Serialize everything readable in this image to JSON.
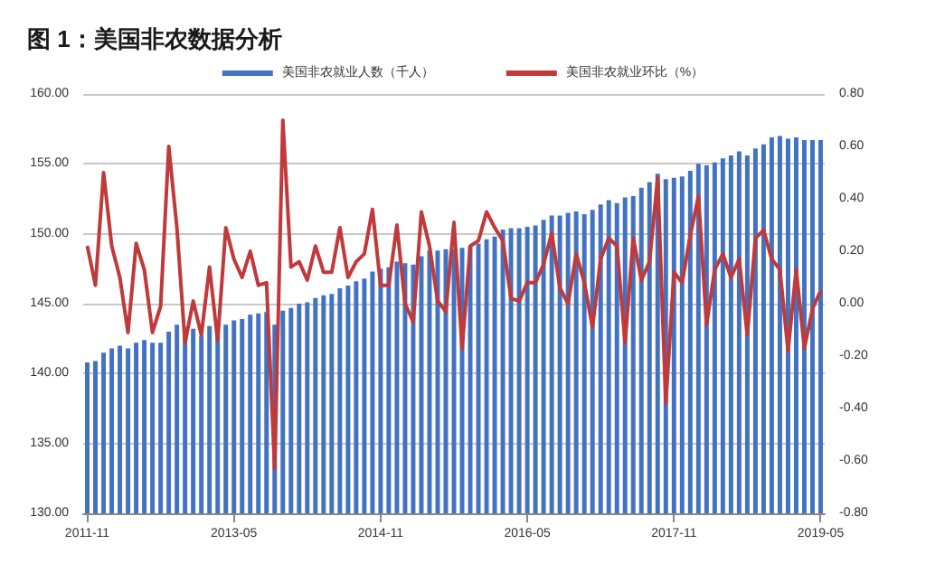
{
  "chart_data": {
    "type": "bar",
    "title": "图 1：美国非农数据分析",
    "categories": [
      "2011-11",
      null,
      null,
      null,
      null,
      null,
      null,
      null,
      null,
      null,
      null,
      null,
      null,
      null,
      null,
      null,
      null,
      null,
      "2013-05",
      null,
      null,
      null,
      null,
      null,
      null,
      null,
      null,
      null,
      null,
      null,
      null,
      null,
      null,
      null,
      null,
      null,
      "2014-11",
      null,
      null,
      null,
      null,
      null,
      null,
      null,
      null,
      null,
      null,
      null,
      null,
      null,
      null,
      null,
      null,
      null,
      "2016-05",
      null,
      null,
      null,
      null,
      null,
      null,
      null,
      null,
      null,
      null,
      null,
      null,
      null,
      null,
      null,
      null,
      null,
      "2017-11",
      null,
      null,
      null,
      null,
      null,
      null,
      null,
      null,
      null,
      null,
      null,
      null,
      null,
      null,
      null,
      null,
      null,
      "2019-05"
    ],
    "series": [
      {
        "name": "美国非农就业人数（千人）",
        "color": "#4272c2",
        "values": [
          140.8,
          140.9,
          141.5,
          141.8,
          142.0,
          141.8,
          142.2,
          142.4,
          142.2,
          142.2,
          143.0,
          143.5,
          143.3,
          143.2,
          142.7,
          143.4,
          142.8,
          143.5,
          143.8,
          143.9,
          144.2,
          144.3,
          144.4,
          143.5,
          144.5,
          144.7,
          145.0,
          145.1,
          145.4,
          145.6,
          145.7,
          146.1,
          146.3,
          146.6,
          146.8,
          147.3,
          147.5,
          147.6,
          148.0,
          147.9,
          147.8,
          148.4,
          148.8,
          148.8,
          148.9,
          148.9,
          149.0,
          149.1,
          149.3,
          149.6,
          149.8,
          150.3,
          150.4,
          150.4,
          150.5,
          150.6,
          151.0,
          151.3,
          151.3,
          151.5,
          151.6,
          151.4,
          151.7,
          152.1,
          152.4,
          152.2,
          152.6,
          152.7,
          153.3,
          153.7,
          154.3,
          153.9,
          154.0,
          154.1,
          154.5,
          155.0,
          154.9,
          155.1,
          155.4,
          155.6,
          155.9,
          155.6,
          156.1,
          156.4,
          156.9,
          157.0,
          156.8,
          156.9,
          156.7,
          156.7,
          156.7
        ]
      },
      {
        "name": "美国非农就业环比（%）",
        "type": "line",
        "axis": "y2",
        "color": "#c0393b",
        "values": [
          0.22,
          0.07,
          0.5,
          0.22,
          0.1,
          -0.11,
          0.23,
          0.13,
          -0.11,
          -0.01,
          0.6,
          0.29,
          -0.15,
          0.01,
          -0.12,
          0.14,
          -0.14,
          0.29,
          0.17,
          0.1,
          0.2,
          0.07,
          0.08,
          -0.63,
          0.7,
          0.14,
          0.16,
          0.09,
          0.22,
          0.12,
          0.12,
          0.29,
          0.1,
          0.16,
          0.19,
          0.36,
          0.07,
          0.07,
          0.3,
          0.0,
          -0.07,
          0.35,
          0.22,
          0.01,
          -0.03,
          0.31,
          -0.17,
          0.22,
          0.24,
          0.35,
          0.29,
          0.24,
          0.02,
          0.01,
          0.08,
          0.08,
          0.15,
          0.27,
          0.06,
          0.0,
          0.19,
          0.08,
          -0.09,
          0.17,
          0.25,
          0.22,
          -0.15,
          0.25,
          0.09,
          0.16,
          0.48,
          -0.38,
          0.12,
          0.08,
          0.26,
          0.41,
          -0.08,
          0.13,
          0.19,
          0.1,
          0.17,
          -0.12,
          0.25,
          0.28,
          0.17,
          0.13,
          -0.18,
          0.13,
          -0.17,
          -0.02,
          0.05
        ]
      }
    ],
    "ylim": [
      130,
      160
    ],
    "yticks": [
      {
        "value": 130,
        "label": "130.00"
      },
      {
        "value": 135,
        "label": "135.00"
      },
      {
        "value": 140,
        "label": "140.00"
      },
      {
        "value": 145,
        "label": "145.00"
      },
      {
        "value": 150,
        "label": "150.00"
      },
      {
        "value": 155,
        "label": "155.00"
      },
      {
        "value": 160,
        "label": "160.00"
      }
    ],
    "y2lim": [
      -0.8,
      0.8
    ],
    "y2ticks": [
      {
        "value": -0.8,
        "label": "-0.80"
      },
      {
        "value": -0.6,
        "label": "-0.60"
      },
      {
        "value": -0.4,
        "label": "-0.40"
      },
      {
        "value": -0.2,
        "label": "-0.20"
      },
      {
        "value": 0,
        "label": "0.00"
      },
      {
        "value": 0.2,
        "label": "0.20"
      },
      {
        "value": 0.4,
        "label": "0.40"
      },
      {
        "value": 0.6,
        "label": "0.60"
      },
      {
        "value": 0.8,
        "label": "0.80"
      }
    ],
    "grid": "y",
    "legend": "top",
    "marker": "none",
    "line_style": "solid"
  }
}
